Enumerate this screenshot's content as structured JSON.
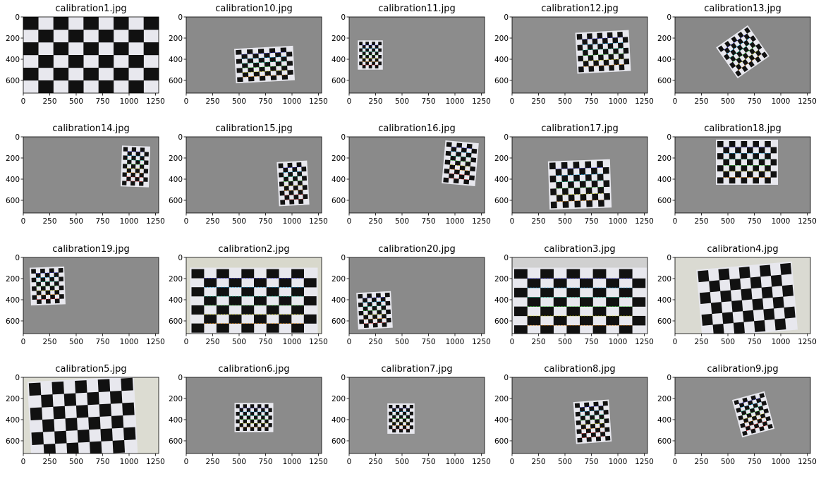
{
  "axes": {
    "x_ticks": [
      "0",
      "250",
      "500",
      "750",
      "1000",
      "1250"
    ],
    "y_ticks": [
      "0",
      "200",
      "400",
      "600"
    ],
    "x_range": [
      0,
      1280
    ],
    "y_range": [
      0,
      720
    ]
  },
  "panels": [
    {
      "title": "calibration1.jpg",
      "bg": "#f2f2f2",
      "board": {
        "cx": 640,
        "cy": 360,
        "w": 1280,
        "h": 720,
        "rot": 0,
        "cols": 9,
        "rows": 6
      },
      "corners": false
    },
    {
      "title": "calibration10.jpg",
      "bg": "#8a8a8a",
      "board": {
        "cx": 740,
        "cy": 450,
        "w": 530,
        "h": 300,
        "rot": -3,
        "cols": 10,
        "rows": 7
      },
      "corners": true
    },
    {
      "title": "calibration11.jpg",
      "bg": "#8c8c8c",
      "board": {
        "cx": 200,
        "cy": 360,
        "w": 210,
        "h": 250,
        "rot": 0,
        "cols": 7,
        "rows": 8
      },
      "corners": true
    },
    {
      "title": "calibration12.jpg",
      "bg": "#8e8e8e",
      "board": {
        "cx": 860,
        "cy": 330,
        "w": 480,
        "h": 360,
        "rot": -3,
        "cols": 10,
        "rows": 7
      },
      "corners": true
    },
    {
      "title": "calibration13.jpg",
      "bg": "#888888",
      "board": {
        "cx": 640,
        "cy": 330,
        "w": 340,
        "h": 330,
        "rot": -35,
        "cols": 9,
        "rows": 7
      },
      "corners": true
    },
    {
      "title": "calibration14.jpg",
      "bg": "#8b8b8b",
      "board": {
        "cx": 1060,
        "cy": 280,
        "w": 240,
        "h": 360,
        "rot": 2,
        "cols": 6,
        "rows": 9
      },
      "corners": true
    },
    {
      "title": "calibration15.jpg",
      "bg": "#8a8a8a",
      "board": {
        "cx": 1010,
        "cy": 440,
        "w": 260,
        "h": 390,
        "rot": -3,
        "cols": 6,
        "rows": 9
      },
      "corners": true
    },
    {
      "title": "calibration16.jpg",
      "bg": "#8a8a8a",
      "board": {
        "cx": 1050,
        "cy": 250,
        "w": 290,
        "h": 380,
        "rot": 5,
        "cols": 6,
        "rows": 9
      },
      "corners": true
    },
    {
      "title": "calibration17.jpg",
      "bg": "#8c8c8c",
      "board": {
        "cx": 640,
        "cy": 450,
        "w": 560,
        "h": 430,
        "rot": -2,
        "cols": 10,
        "rows": 7
      },
      "corners": true
    },
    {
      "title": "calibration18.jpg",
      "bg": "#8c8c8c",
      "board": {
        "cx": 680,
        "cy": 240,
        "w": 560,
        "h": 400,
        "rot": 0,
        "cols": 10,
        "rows": 7
      },
      "corners": true
    },
    {
      "title": "calibration19.jpg",
      "bg": "#8b8b8b",
      "board": {
        "cx": 230,
        "cy": 270,
        "w": 300,
        "h": 330,
        "rot": -2,
        "cols": 7,
        "rows": 8
      },
      "corners": true
    },
    {
      "title": "calibration2.jpg",
      "bg": "#d8d8cc",
      "board": {
        "cx": 640,
        "cy": 410,
        "w": 1180,
        "h": 600,
        "rot": 0,
        "cols": 10,
        "rows": 7
      },
      "corners": true
    },
    {
      "title": "calibration20.jpg",
      "bg": "#8a8a8a",
      "board": {
        "cx": 240,
        "cy": 500,
        "w": 300,
        "h": 320,
        "rot": -3,
        "cols": 7,
        "rows": 8
      },
      "corners": true
    },
    {
      "title": "calibration3.jpg",
      "bg": "#d0d0d0",
      "board": {
        "cx": 640,
        "cy": 420,
        "w": 1240,
        "h": 620,
        "rot": 0,
        "cols": 10,
        "rows": 7
      },
      "corners": true
    },
    {
      "title": "calibration4.jpg",
      "bg": "#dadad2",
      "board": {
        "cx": 680,
        "cy": 400,
        "w": 880,
        "h": 620,
        "rot": -5,
        "cols": 9,
        "rows": 6
      },
      "corners": false
    },
    {
      "title": "calibration5.jpg",
      "bg": "#dcdcd2",
      "board": {
        "cx": 560,
        "cy": 380,
        "w": 980,
        "h": 700,
        "rot": -3,
        "cols": 9,
        "rows": 6
      },
      "corners": false
    },
    {
      "title": "calibration6.jpg",
      "bg": "#8b8b8b",
      "board": {
        "cx": 640,
        "cy": 380,
        "w": 340,
        "h": 250,
        "rot": 0,
        "cols": 10,
        "rows": 7
      },
      "corners": true
    },
    {
      "title": "calibration7.jpg",
      "bg": "#909090",
      "board": {
        "cx": 490,
        "cy": 390,
        "w": 230,
        "h": 260,
        "rot": 0,
        "cols": 7,
        "rows": 8
      },
      "corners": true
    },
    {
      "title": "calibration8.jpg",
      "bg": "#8b8b8b",
      "board": {
        "cx": 760,
        "cy": 420,
        "w": 310,
        "h": 370,
        "rot": -4,
        "cols": 7,
        "rows": 9
      },
      "corners": true
    },
    {
      "title": "calibration9.jpg",
      "bg": "#8d8d8d",
      "board": {
        "cx": 740,
        "cy": 350,
        "w": 290,
        "h": 340,
        "rot": -15,
        "cols": 7,
        "rows": 9
      },
      "corners": true
    }
  ]
}
